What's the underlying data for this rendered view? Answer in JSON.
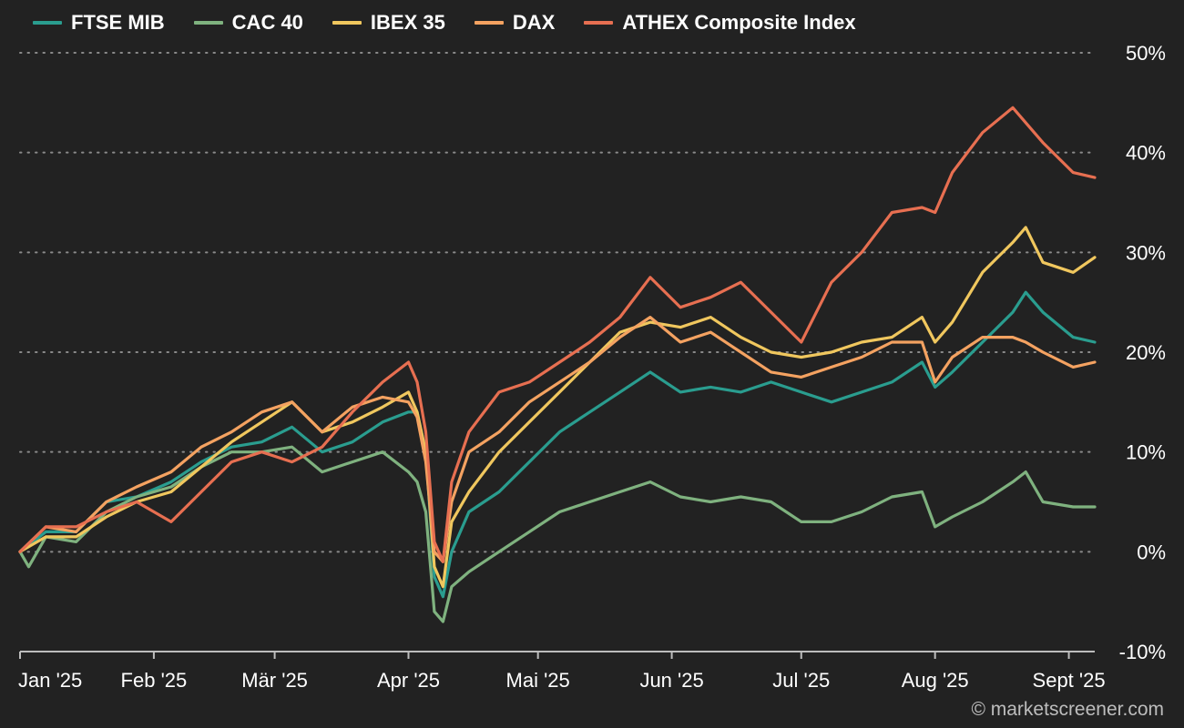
{
  "chart_data": {
    "type": "line",
    "legend_position": "top-left",
    "grid": "horizontal dotted",
    "y_axis_position": "right",
    "y_unit": "%",
    "ylim": [
      -10,
      50
    ],
    "y_ticks": [
      50,
      40,
      30,
      20,
      10,
      0,
      -10
    ],
    "y_tick_labels": [
      "50%",
      "40%",
      "30%",
      "20%",
      "10%",
      "0%",
      "-10%"
    ],
    "x_tick_labels": [
      "Jan '25",
      "Feb '25",
      "Mär '25",
      "Apr '25",
      "Mai '25",
      "Jun '25",
      "Jul '25",
      "Aug '25",
      "Sept '25"
    ],
    "x_tick_dates": [
      "2025-01-01",
      "2025-02-01",
      "2025-03-01",
      "2025-04-01",
      "2025-05-01",
      "2025-06-01",
      "2025-07-01",
      "2025-08-01",
      "2025-09-01"
    ],
    "x_range": [
      "2025-01-01",
      "2025-09-07"
    ],
    "series": [
      {
        "name": "FTSE MIB",
        "color": "#2a9d8f",
        "points": [
          [
            "2025-01-01",
            0
          ],
          [
            "2025-01-07",
            2
          ],
          [
            "2025-01-14",
            2
          ],
          [
            "2025-01-21",
            5
          ],
          [
            "2025-01-28",
            5.5
          ],
          [
            "2025-02-05",
            7
          ],
          [
            "2025-02-12",
            9
          ],
          [
            "2025-02-19",
            10.5
          ],
          [
            "2025-02-26",
            11
          ],
          [
            "2025-03-05",
            12.5
          ],
          [
            "2025-03-12",
            10
          ],
          [
            "2025-03-19",
            11
          ],
          [
            "2025-03-26",
            13
          ],
          [
            "2025-04-01",
            14
          ],
          [
            "2025-04-03",
            14
          ],
          [
            "2025-04-05",
            10
          ],
          [
            "2025-04-07",
            -2.5
          ],
          [
            "2025-04-09",
            -4.5
          ],
          [
            "2025-04-11",
            0
          ],
          [
            "2025-04-15",
            4
          ],
          [
            "2025-04-22",
            6
          ],
          [
            "2025-04-29",
            9
          ],
          [
            "2025-05-06",
            12
          ],
          [
            "2025-05-13",
            14
          ],
          [
            "2025-05-20",
            16
          ],
          [
            "2025-05-27",
            18
          ],
          [
            "2025-06-03",
            16
          ],
          [
            "2025-06-10",
            16.5
          ],
          [
            "2025-06-17",
            16
          ],
          [
            "2025-06-24",
            17
          ],
          [
            "2025-07-01",
            16
          ],
          [
            "2025-07-08",
            15
          ],
          [
            "2025-07-15",
            16
          ],
          [
            "2025-07-22",
            17
          ],
          [
            "2025-07-29",
            19
          ],
          [
            "2025-08-01",
            16.5
          ],
          [
            "2025-08-05",
            18
          ],
          [
            "2025-08-12",
            21
          ],
          [
            "2025-08-19",
            24
          ],
          [
            "2025-08-22",
            26
          ],
          [
            "2025-08-26",
            24
          ],
          [
            "2025-09-02",
            21.5
          ],
          [
            "2025-09-07",
            21
          ]
        ]
      },
      {
        "name": "CAC 40",
        "color": "#7fb27f",
        "points": [
          [
            "2025-01-01",
            0
          ],
          [
            "2025-01-03",
            -1.5
          ],
          [
            "2025-01-07",
            1.5
          ],
          [
            "2025-01-14",
            1
          ],
          [
            "2025-01-21",
            4
          ],
          [
            "2025-01-28",
            5.5
          ],
          [
            "2025-02-05",
            6.5
          ],
          [
            "2025-02-12",
            8.5
          ],
          [
            "2025-02-19",
            10
          ],
          [
            "2025-02-26",
            10
          ],
          [
            "2025-03-05",
            10.5
          ],
          [
            "2025-03-12",
            8
          ],
          [
            "2025-03-19",
            9
          ],
          [
            "2025-03-26",
            10
          ],
          [
            "2025-04-01",
            8
          ],
          [
            "2025-04-03",
            7
          ],
          [
            "2025-04-05",
            4
          ],
          [
            "2025-04-07",
            -6
          ],
          [
            "2025-04-09",
            -7
          ],
          [
            "2025-04-11",
            -3.5
          ],
          [
            "2025-04-15",
            -2
          ],
          [
            "2025-04-22",
            0
          ],
          [
            "2025-04-29",
            2
          ],
          [
            "2025-05-06",
            4
          ],
          [
            "2025-05-13",
            5
          ],
          [
            "2025-05-20",
            6
          ],
          [
            "2025-05-27",
            7
          ],
          [
            "2025-06-03",
            5.5
          ],
          [
            "2025-06-10",
            5
          ],
          [
            "2025-06-17",
            5.5
          ],
          [
            "2025-06-24",
            5
          ],
          [
            "2025-07-01",
            3
          ],
          [
            "2025-07-08",
            3
          ],
          [
            "2025-07-15",
            4
          ],
          [
            "2025-07-22",
            5.5
          ],
          [
            "2025-07-29",
            6
          ],
          [
            "2025-08-01",
            2.5
          ],
          [
            "2025-08-05",
            3.5
          ],
          [
            "2025-08-12",
            5
          ],
          [
            "2025-08-19",
            7
          ],
          [
            "2025-08-22",
            8
          ],
          [
            "2025-08-26",
            5
          ],
          [
            "2025-09-02",
            4.5
          ],
          [
            "2025-09-07",
            4.5
          ]
        ]
      },
      {
        "name": "IBEX 35",
        "color": "#f0c75e",
        "points": [
          [
            "2025-01-01",
            0
          ],
          [
            "2025-01-07",
            1.5
          ],
          [
            "2025-01-14",
            1.5
          ],
          [
            "2025-01-21",
            3.5
          ],
          [
            "2025-01-28",
            5
          ],
          [
            "2025-02-05",
            6
          ],
          [
            "2025-02-12",
            8.5
          ],
          [
            "2025-02-19",
            11
          ],
          [
            "2025-02-26",
            13
          ],
          [
            "2025-03-05",
            15
          ],
          [
            "2025-03-12",
            12
          ],
          [
            "2025-03-19",
            13
          ],
          [
            "2025-03-26",
            14.5
          ],
          [
            "2025-04-01",
            16
          ],
          [
            "2025-04-03",
            14
          ],
          [
            "2025-04-05",
            10
          ],
          [
            "2025-04-07",
            -1.5
          ],
          [
            "2025-04-09",
            -3.5
          ],
          [
            "2025-04-11",
            3
          ],
          [
            "2025-04-15",
            6
          ],
          [
            "2025-04-22",
            10
          ],
          [
            "2025-04-29",
            13
          ],
          [
            "2025-05-06",
            16
          ],
          [
            "2025-05-13",
            19
          ],
          [
            "2025-05-20",
            22
          ],
          [
            "2025-05-27",
            23
          ],
          [
            "2025-06-03",
            22.5
          ],
          [
            "2025-06-10",
            23.5
          ],
          [
            "2025-06-17",
            21.5
          ],
          [
            "2025-06-24",
            20
          ],
          [
            "2025-07-01",
            19.5
          ],
          [
            "2025-07-08",
            20
          ],
          [
            "2025-07-15",
            21
          ],
          [
            "2025-07-22",
            21.5
          ],
          [
            "2025-07-29",
            23.5
          ],
          [
            "2025-08-01",
            21
          ],
          [
            "2025-08-05",
            23
          ],
          [
            "2025-08-12",
            28
          ],
          [
            "2025-08-19",
            31
          ],
          [
            "2025-08-22",
            32.5
          ],
          [
            "2025-08-26",
            29
          ],
          [
            "2025-09-02",
            28
          ],
          [
            "2025-09-07",
            29.5
          ]
        ]
      },
      {
        "name": "DAX",
        "color": "#f4a261",
        "points": [
          [
            "2025-01-01",
            0
          ],
          [
            "2025-01-07",
            2.5
          ],
          [
            "2025-01-14",
            2
          ],
          [
            "2025-01-21",
            5
          ],
          [
            "2025-01-28",
            6.5
          ],
          [
            "2025-02-05",
            8
          ],
          [
            "2025-02-12",
            10.5
          ],
          [
            "2025-02-19",
            12
          ],
          [
            "2025-02-26",
            14
          ],
          [
            "2025-03-05",
            15
          ],
          [
            "2025-03-12",
            12
          ],
          [
            "2025-03-19",
            14.5
          ],
          [
            "2025-03-26",
            15.5
          ],
          [
            "2025-04-01",
            15
          ],
          [
            "2025-04-03",
            13.5
          ],
          [
            "2025-04-05",
            9
          ],
          [
            "2025-04-07",
            0
          ],
          [
            "2025-04-09",
            -1
          ],
          [
            "2025-04-11",
            5
          ],
          [
            "2025-04-15",
            10
          ],
          [
            "2025-04-22",
            12
          ],
          [
            "2025-04-29",
            15
          ],
          [
            "2025-05-06",
            17
          ],
          [
            "2025-05-13",
            19
          ],
          [
            "2025-05-20",
            21.5
          ],
          [
            "2025-05-27",
            23.5
          ],
          [
            "2025-06-03",
            21
          ],
          [
            "2025-06-10",
            22
          ],
          [
            "2025-06-17",
            20
          ],
          [
            "2025-06-24",
            18
          ],
          [
            "2025-07-01",
            17.5
          ],
          [
            "2025-07-08",
            18.5
          ],
          [
            "2025-07-15",
            19.5
          ],
          [
            "2025-07-22",
            21
          ],
          [
            "2025-07-29",
            21
          ],
          [
            "2025-08-01",
            17
          ],
          [
            "2025-08-05",
            19.5
          ],
          [
            "2025-08-12",
            21.5
          ],
          [
            "2025-08-19",
            21.5
          ],
          [
            "2025-08-22",
            21
          ],
          [
            "2025-08-26",
            20
          ],
          [
            "2025-09-02",
            18.5
          ],
          [
            "2025-09-07",
            19
          ]
        ]
      },
      {
        "name": "ATHEX Composite Index",
        "color": "#e76f51",
        "points": [
          [
            "2025-01-01",
            0
          ],
          [
            "2025-01-07",
            2.5
          ],
          [
            "2025-01-14",
            2.5
          ],
          [
            "2025-01-21",
            4
          ],
          [
            "2025-01-28",
            5
          ],
          [
            "2025-02-05",
            3
          ],
          [
            "2025-02-12",
            6
          ],
          [
            "2025-02-19",
            9
          ],
          [
            "2025-02-26",
            10
          ],
          [
            "2025-03-05",
            9
          ],
          [
            "2025-03-12",
            10.5
          ],
          [
            "2025-03-19",
            14
          ],
          [
            "2025-03-26",
            17
          ],
          [
            "2025-04-01",
            19
          ],
          [
            "2025-04-03",
            17
          ],
          [
            "2025-04-05",
            12
          ],
          [
            "2025-04-07",
            1
          ],
          [
            "2025-04-09",
            -1
          ],
          [
            "2025-04-11",
            7
          ],
          [
            "2025-04-15",
            12
          ],
          [
            "2025-04-22",
            16
          ],
          [
            "2025-04-29",
            17
          ],
          [
            "2025-05-06",
            19
          ],
          [
            "2025-05-13",
            21
          ],
          [
            "2025-05-20",
            23.5
          ],
          [
            "2025-05-27",
            27.5
          ],
          [
            "2025-06-03",
            24.5
          ],
          [
            "2025-06-10",
            25.5
          ],
          [
            "2025-06-17",
            27
          ],
          [
            "2025-06-24",
            24
          ],
          [
            "2025-07-01",
            21
          ],
          [
            "2025-07-08",
            27
          ],
          [
            "2025-07-15",
            30
          ],
          [
            "2025-07-22",
            34
          ],
          [
            "2025-07-29",
            34.5
          ],
          [
            "2025-08-01",
            34
          ],
          [
            "2025-08-05",
            38
          ],
          [
            "2025-08-12",
            42
          ],
          [
            "2025-08-19",
            44.5
          ],
          [
            "2025-08-22",
            43
          ],
          [
            "2025-08-26",
            41
          ],
          [
            "2025-09-02",
            38
          ],
          [
            "2025-09-07",
            37.5
          ]
        ]
      }
    ]
  },
  "credit": "© marketscreener.com"
}
